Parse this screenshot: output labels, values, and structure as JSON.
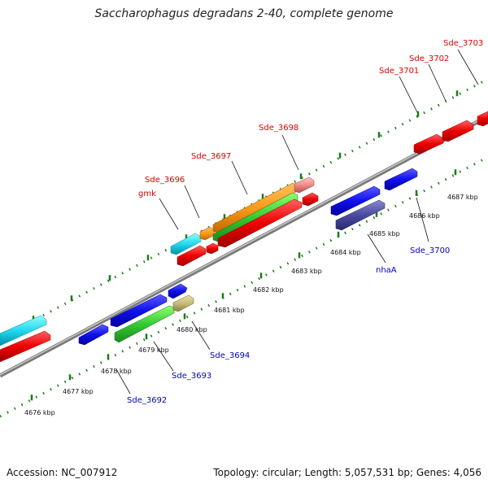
{
  "title": "Saccharophagus degradans 2-40, complete genome",
  "footer": {
    "accession": "Accession: NC_007912",
    "summary": "Topology: circular; Length: 5,057,531 bp; Genes: 4,056"
  },
  "colors": {
    "backbone": "#8c8c8c",
    "tick": "#1a7a1a",
    "top_label": "#dd0000",
    "bottom_label": "#0000cc"
  },
  "scale_labels": [
    "4676 kbp",
    "4677 kbp",
    "4678 kbp",
    "4679 kbp",
    "4680 kbp",
    "4681 kbp",
    "4682 kbp",
    "4683 kbp",
    "4684 kbp",
    "4685 kbp",
    "4686 kbp",
    "4687 kbp"
  ],
  "top_labels": [
    "gmk",
    "Sde_3696",
    "Sde_3697",
    "Sde_3698",
    "Sde_3701",
    "Sde_3702",
    "Sde_3703"
  ],
  "bottom_labels": [
    "Sde_3692",
    "Sde_3693",
    "Sde_3694",
    "nhaA",
    "Sde_3700"
  ]
}
